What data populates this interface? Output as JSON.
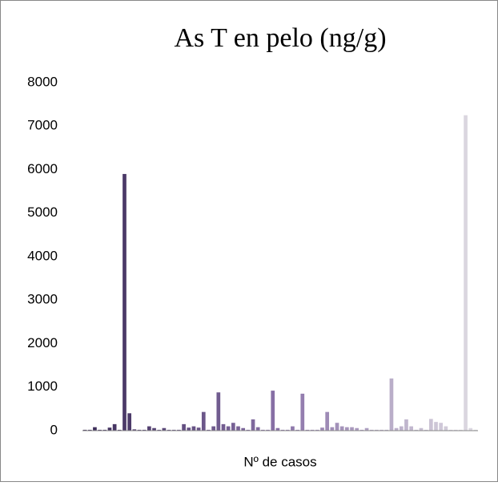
{
  "chart_data": {
    "type": "bar",
    "title": "As T en pelo (ng/g)",
    "x_label": "Nº de casos",
    "categories": [
      null,
      null,
      null,
      null,
      null,
      null,
      null,
      null,
      null,
      null,
      null,
      null,
      null,
      null,
      null,
      null,
      null,
      null,
      null,
      null,
      null,
      null,
      null,
      null,
      null,
      null,
      null,
      null,
      null,
      null,
      null,
      null,
      null,
      null,
      null,
      null,
      null,
      null,
      null,
      null,
      null,
      null,
      null,
      null,
      null,
      null,
      null,
      null,
      null,
      null,
      null,
      null,
      null,
      null,
      null,
      null,
      null,
      null,
      null,
      null,
      null,
      null,
      null,
      null,
      null,
      null,
      null,
      null,
      null,
      null,
      null,
      null,
      null,
      null,
      null,
      null,
      null,
      null,
      null,
      null
    ],
    "values": [
      20,
      20,
      80,
      20,
      20,
      70,
      150,
      20,
      5900,
      400,
      30,
      20,
      20,
      100,
      60,
      20,
      60,
      20,
      20,
      20,
      150,
      70,
      100,
      70,
      430,
      20,
      100,
      880,
      150,
      100,
      180,
      100,
      60,
      20,
      260,
      80,
      20,
      20,
      920,
      60,
      20,
      20,
      100,
      20,
      850,
      20,
      20,
      20,
      70,
      430,
      80,
      180,
      100,
      80,
      80,
      60,
      20,
      60,
      20,
      20,
      20,
      20,
      1200,
      60,
      100,
      260,
      100,
      20,
      60,
      20,
      270,
      200,
      180,
      100,
      20,
      20,
      20,
      7250,
      60,
      20
    ],
    "color_gradient": [
      "#3b2b58",
      "#8a72a8",
      "#dedbe2"
    ],
    "ylim": [
      0,
      8000
    ],
    "yticks": [
      0,
      1000,
      2000,
      3000,
      4000,
      5000,
      6000,
      7000,
      8000
    ],
    "grid": false
  }
}
